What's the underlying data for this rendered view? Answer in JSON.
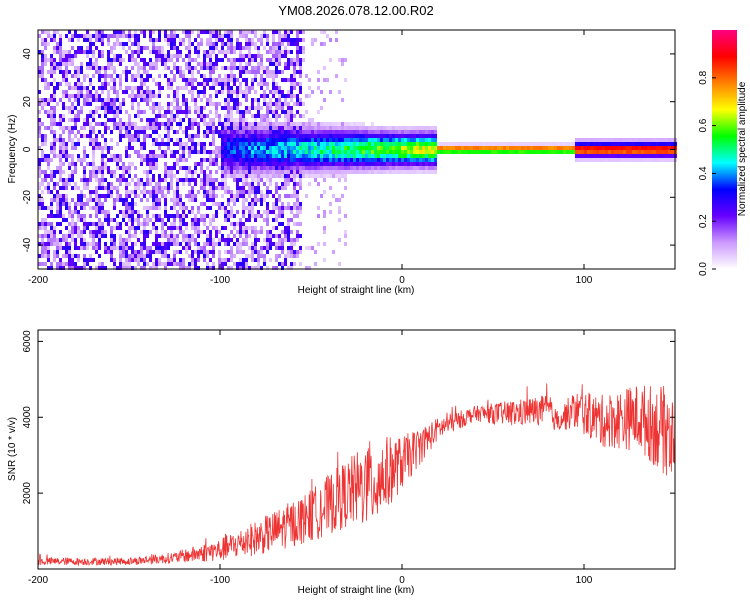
{
  "figure_title": "YM08.2026.078.12.00.R02",
  "chart_data": [
    {
      "type": "heatmap",
      "title": "YM08.2026.078.12.00.R02",
      "xlabel": "Height of straight line (km)",
      "ylabel": "Frequency (Hz)",
      "xlim": [
        -200,
        150
      ],
      "ylim": [
        -50,
        50
      ],
      "xticks": [
        -200,
        -100,
        0,
        100
      ],
      "xtick_labels": [
        "-200",
        "-100",
        "0",
        "100"
      ],
      "yticks": [
        -40,
        -20,
        0,
        20,
        40
      ],
      "ytick_labels": [
        "-40",
        "-20",
        "0",
        "20",
        "40"
      ],
      "colorbar": {
        "label": "Normalized spectral amplitude",
        "range": [
          0,
          1
        ],
        "ticks": [
          0.0,
          0.2,
          0.4,
          0.6,
          0.8
        ],
        "tick_labels": [
          "0.0",
          "0.2",
          "0.4",
          "0.6",
          "0.8"
        ],
        "colormap": [
          "#ffffff",
          "#cc99ff",
          "#6600ff",
          "#0000ff",
          "#00ffff",
          "#00ff00",
          "#ffff00",
          "#ff8000",
          "#ff0000",
          "#ff0080"
        ]
      },
      "structure": {
        "noise_region_x": [
          -200,
          -55
        ],
        "noise_amplitude": 0.2,
        "transition_region_x": [
          -100,
          20
        ],
        "narrowband_region_x": [
          20,
          150
        ],
        "band_center_hz": 0,
        "band_halfwidth_hz_at_0km": 6,
        "peak_amplitude": 0.9
      }
    },
    {
      "type": "line",
      "xlabel": "Height of straight line (km)",
      "ylabel": "SNR (10 * v/v)",
      "xlim": [
        -200,
        150
      ],
      "ylim": [
        0,
        6300
      ],
      "xticks": [
        -200,
        -100,
        0,
        100
      ],
      "xtick_labels": [
        "-200",
        "-100",
        "0",
        "100"
      ],
      "yticks": [
        2000,
        4000,
        6000
      ],
      "ytick_labels": [
        "2000",
        "4000",
        "6000"
      ],
      "series": [
        {
          "name": "SNR",
          "color": "#ee3333",
          "envelope_x": [
            -200,
            -150,
            -125,
            -100,
            -75,
            -50,
            -30,
            -15,
            0,
            20,
            40,
            60,
            80,
            85,
            95,
            110,
            130,
            150
          ],
          "envelope_mean": [
            200,
            200,
            300,
            500,
            900,
            1400,
            2000,
            2300,
            2800,
            3700,
            4100,
            4100,
            4200,
            3900,
            4200,
            3900,
            4000,
            3500
          ],
          "envelope_spread": [
            100,
            100,
            150,
            300,
            500,
            700,
            900,
            1200,
            700,
            300,
            200,
            350,
            400,
            300,
            500,
            700,
            900,
            1300
          ]
        }
      ]
    }
  ]
}
